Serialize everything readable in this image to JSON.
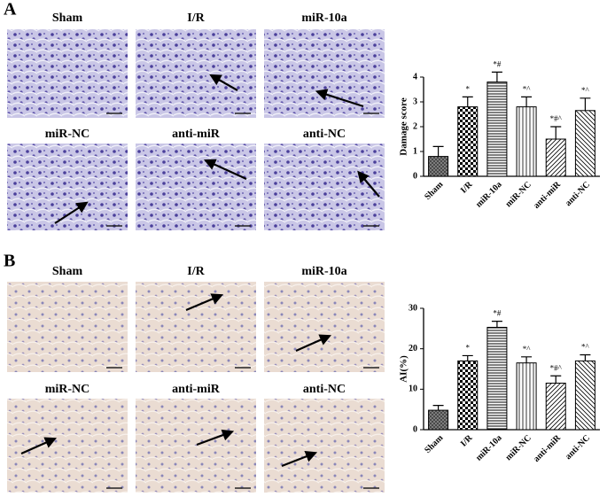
{
  "panels": [
    {
      "label": "A",
      "images": [
        "Sham",
        "I/R",
        "miR-10a",
        "miR-NC",
        "anti-miR",
        "anti-NC"
      ]
    },
    {
      "label": "B",
      "images": [
        "Sham",
        "I/R",
        "miR-10a",
        "miR-NC",
        "anti-miR",
        "anti-NC"
      ]
    }
  ],
  "chart_data": [
    {
      "type": "bar",
      "y_label": "Damage score",
      "categories": [
        "Sham",
        "I/R",
        "miR-10a",
        "miR-NC",
        "anti-miR",
        "anti-NC"
      ],
      "values": [
        0.8,
        2.8,
        3.8,
        2.8,
        1.5,
        2.65
      ],
      "errors": [
        0.4,
        0.4,
        0.4,
        0.4,
        0.5,
        0.5
      ],
      "annotations": [
        null,
        "*",
        "*#",
        "*^",
        "*#^",
        "*^"
      ],
      "patterns": [
        "crosshatch",
        "checker",
        "horizontal",
        "vertical",
        "diagonal",
        "back-diagonal"
      ],
      "color": "#000000",
      "ylim": [
        0,
        4
      ],
      "yticks": [
        0,
        1,
        2,
        3,
        4
      ]
    },
    {
      "type": "bar",
      "y_label": "AI(%)",
      "categories": [
        "Sham",
        "I/R",
        "miR-10a",
        "miR-NC",
        "anti-miR",
        "anti-NC"
      ],
      "values": [
        4.8,
        17,
        25.3,
        16.5,
        11.5,
        17
      ],
      "errors": [
        1.2,
        1.3,
        1.5,
        1.5,
        1.8,
        1.5
      ],
      "annotations": [
        null,
        "*",
        "*#",
        "*^",
        "*#^",
        "*^"
      ],
      "patterns": [
        "crosshatch",
        "checker",
        "horizontal",
        "vertical",
        "diagonal",
        "back-diagonal"
      ],
      "color": "#000000",
      "ylim": [
        0,
        30
      ],
      "yticks": [
        0,
        10,
        20,
        30
      ]
    }
  ]
}
